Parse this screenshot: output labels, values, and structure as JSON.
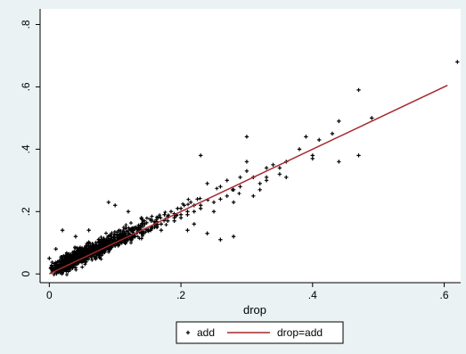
{
  "colors": {
    "outer_background": "#eaf2f3",
    "plot_background": "#ffffff",
    "points": "#000000",
    "line": "#a5292c",
    "axis": "#000000",
    "legend_border": "#000000"
  },
  "chart_data": {
    "type": "scatter",
    "title": "",
    "xlabel": "drop",
    "ylabel": "",
    "xlim": [
      -0.014,
      0.625
    ],
    "ylim": [
      -0.028,
      0.85
    ],
    "x_ticks": [
      0,
      0.2,
      0.4,
      0.6
    ],
    "x_tick_labels": [
      "0",
      ".2",
      ".4",
      ".6"
    ],
    "y_ticks": [
      0,
      0.2,
      0.4,
      0.6,
      0.8
    ],
    "y_tick_labels": [
      "0",
      ".2",
      ".4",
      ".6",
      ".8"
    ],
    "y_tick_label_rotation": "vertical",
    "grid": false,
    "legend_position": "bottom-center",
    "series": [
      {
        "name": "add",
        "kind": "scatter",
        "marker": "plus",
        "description_of_trend": "dense cloud following add ≈ drop, most points between drop 0 and 0.25",
        "points": [
          [
            0.62,
            0.68
          ],
          [
            0.47,
            0.59
          ],
          [
            0.49,
            0.5
          ],
          [
            0.47,
            0.38
          ],
          [
            0.44,
            0.36
          ],
          [
            0.44,
            0.49
          ],
          [
            0.43,
            0.45
          ],
          [
            0.41,
            0.43
          ],
          [
            0.4,
            0.37
          ],
          [
            0.39,
            0.44
          ],
          [
            0.38,
            0.4
          ],
          [
            0.4,
            0.38
          ],
          [
            0.36,
            0.36
          ],
          [
            0.35,
            0.34
          ],
          [
            0.33,
            0.3
          ],
          [
            0.32,
            0.29
          ],
          [
            0.31,
            0.31
          ],
          [
            0.3,
            0.33
          ],
          [
            0.33,
            0.31
          ],
          [
            0.34,
            0.35
          ],
          [
            0.3,
            0.44
          ],
          [
            0.36,
            0.31
          ],
          [
            0.33,
            0.34
          ],
          [
            0.35,
            0.32
          ],
          [
            0.3,
            0.36
          ],
          [
            0.29,
            0.31
          ],
          [
            0.28,
            0.27
          ],
          [
            0.27,
            0.3
          ],
          [
            0.26,
            0.28
          ],
          [
            0.27,
            0.25
          ],
          [
            0.26,
            0.24
          ],
          [
            0.25,
            0.23
          ],
          [
            0.24,
            0.29
          ],
          [
            0.23,
            0.38
          ],
          [
            0.25,
            0.2
          ],
          [
            0.28,
            0.23
          ],
          [
            0.29,
            0.28
          ],
          [
            0.31,
            0.25
          ],
          [
            0.32,
            0.27
          ],
          [
            0.22,
            0.16
          ],
          [
            0.21,
            0.14
          ],
          [
            0.24,
            0.13
          ],
          [
            0.26,
            0.11
          ],
          [
            0.28,
            0.12
          ],
          [
            0.23,
            0.21
          ],
          [
            0.22,
            0.22
          ],
          [
            0.21,
            0.2
          ],
          [
            0.2,
            0.21
          ],
          [
            0.2,
            0.18
          ],
          [
            0.19,
            0.17
          ],
          [
            0.17,
            0.14
          ],
          [
            0.14,
            0.18
          ],
          [
            0.12,
            0.2
          ],
          [
            0.1,
            0.22
          ],
          [
            0.09,
            0.23
          ],
          [
            0.06,
            0.14
          ],
          [
            0.04,
            0.12
          ],
          [
            0.02,
            0.14
          ],
          [
            0.01,
            0.08
          ],
          [
            0.0,
            0.05
          ],
          [
            0.01,
            0.02
          ],
          [
            0.02,
            0.03
          ],
          [
            0.005,
            0.015
          ],
          [
            0.015,
            0.01
          ],
          [
            0.03,
            0.04
          ],
          [
            0.025,
            0.06
          ],
          [
            0.04,
            0.02
          ],
          [
            0.045,
            0.05
          ],
          [
            0.05,
            0.07
          ],
          [
            0.055,
            0.04
          ],
          [
            0.06,
            0.06
          ],
          [
            0.065,
            0.09
          ],
          [
            0.07,
            0.05
          ],
          [
            0.075,
            0.08
          ],
          [
            0.08,
            0.07
          ],
          [
            0.085,
            0.1
          ],
          [
            0.09,
            0.08
          ],
          [
            0.095,
            0.11
          ],
          [
            0.1,
            0.09
          ],
          [
            0.105,
            0.12
          ],
          [
            0.11,
            0.1
          ],
          [
            0.115,
            0.13
          ],
          [
            0.12,
            0.11
          ],
          [
            0.125,
            0.14
          ],
          [
            0.13,
            0.12
          ],
          [
            0.135,
            0.15
          ],
          [
            0.14,
            0.13
          ],
          [
            0.145,
            0.16
          ],
          [
            0.15,
            0.14
          ],
          [
            0.155,
            0.17
          ],
          [
            0.16,
            0.15
          ],
          [
            0.165,
            0.18
          ],
          [
            0.17,
            0.16
          ],
          [
            0.175,
            0.19
          ],
          [
            0.18,
            0.17
          ],
          [
            0.185,
            0.2
          ],
          [
            0.19,
            0.18
          ],
          [
            0.195,
            0.21
          ],
          [
            0.2,
            0.19
          ],
          [
            0.205,
            0.22
          ],
          [
            0.21,
            0.19
          ],
          [
            0.215,
            0.23
          ],
          [
            0.22,
            0.2
          ],
          [
            0.225,
            0.24
          ],
          [
            0.23,
            0.22
          ]
        ]
      },
      {
        "name": "drop=add",
        "kind": "line",
        "points": [
          [
            0,
            0
          ],
          [
            0.605,
            0.605
          ]
        ]
      }
    ]
  }
}
